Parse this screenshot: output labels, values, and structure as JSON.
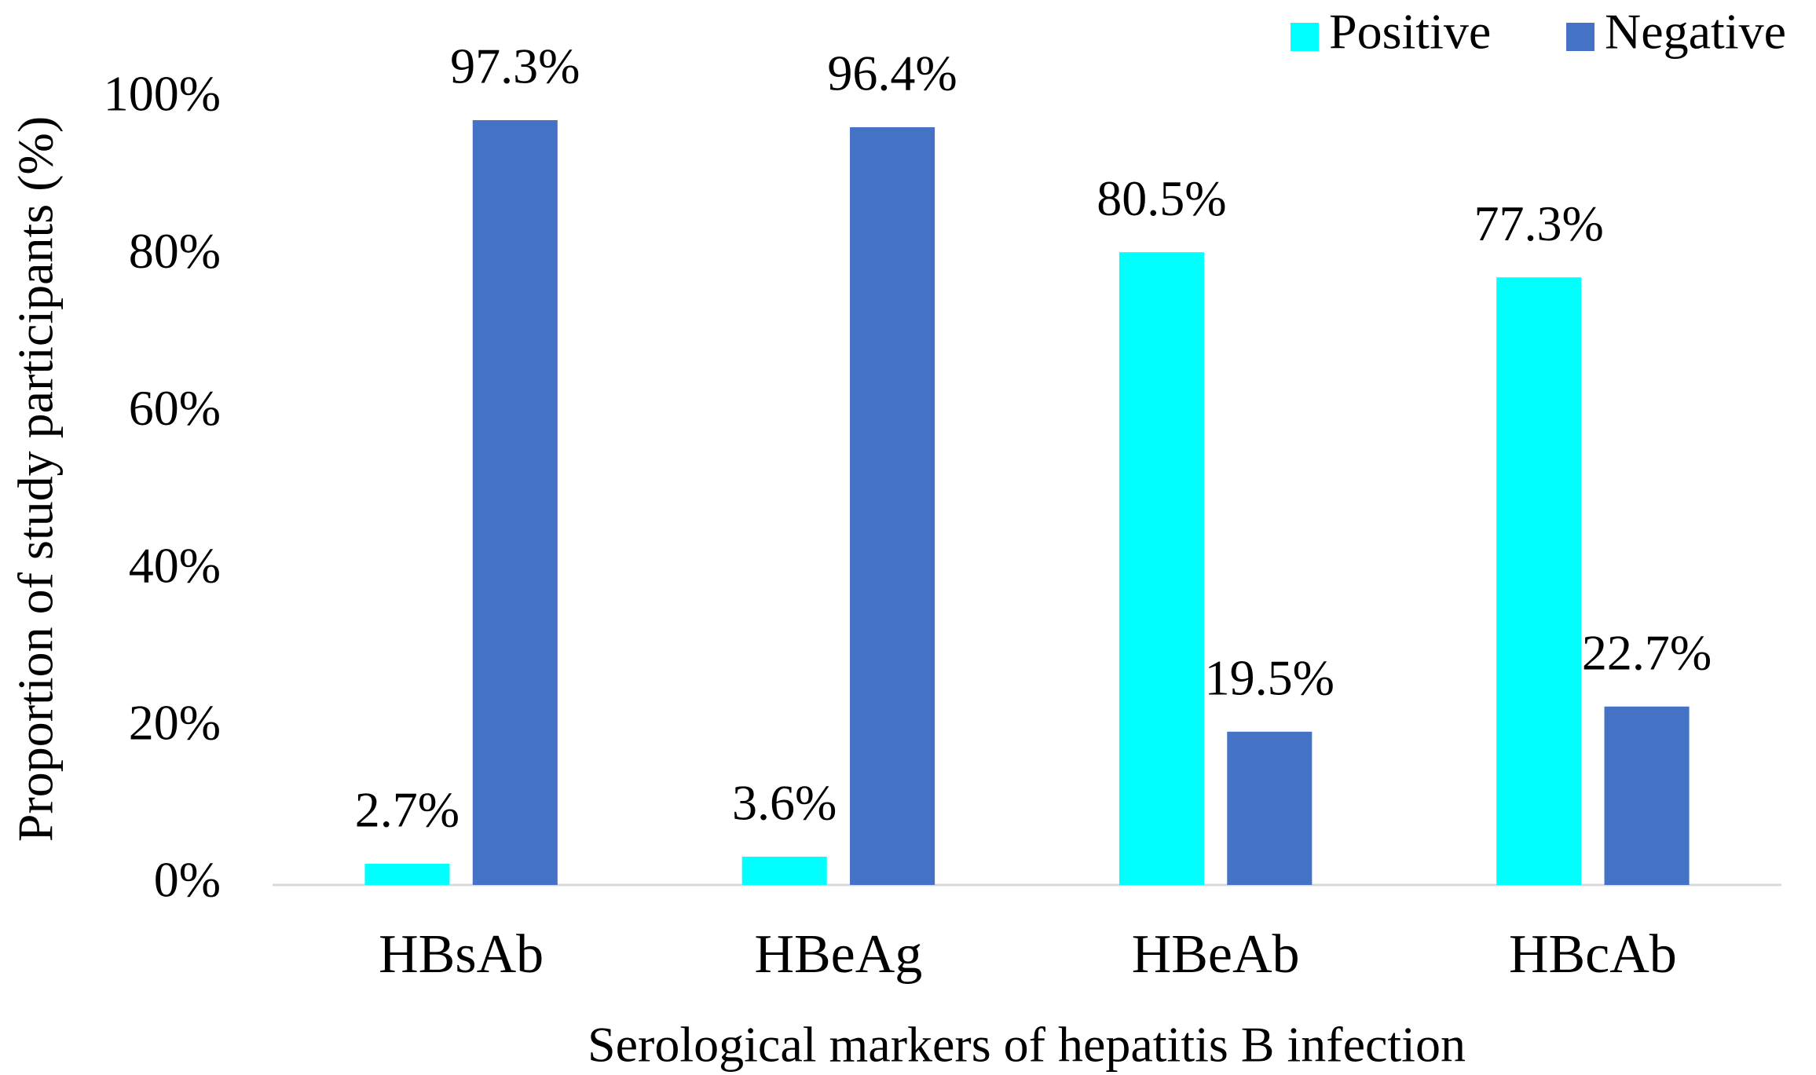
{
  "chart_data": {
    "type": "bar",
    "x_label": "Serological markers of hepatitis B infection",
    "y_label": "Proportion of study participants (%)",
    "categories": [
      "HBsAb",
      "HBeAg",
      "HBeAb",
      "HBcAb"
    ],
    "series": [
      {
        "name": "Positive",
        "color": "#00ffff",
        "values": [
          2.7,
          3.6,
          80.5,
          77.3
        ],
        "value_labels": [
          "2.7%",
          "3.6%",
          "80.5%",
          "77.3%"
        ]
      },
      {
        "name": "Negative",
        "color": "#4472c4",
        "values": [
          97.3,
          96.4,
          19.5,
          22.7
        ],
        "value_labels": [
          "97.3%",
          "96.4%",
          "19.5%",
          "22.7%"
        ]
      }
    ],
    "ylim": [
      0,
      100
    ],
    "yticks": [
      {
        "value": 0,
        "label": "0%"
      },
      {
        "value": 20,
        "label": "20%"
      },
      {
        "value": 40,
        "label": "40%"
      },
      {
        "value": 60,
        "label": "60%"
      },
      {
        "value": 80,
        "label": "80%"
      },
      {
        "value": 100,
        "label": "100%"
      }
    ],
    "grid": false,
    "legend": "top-right"
  }
}
